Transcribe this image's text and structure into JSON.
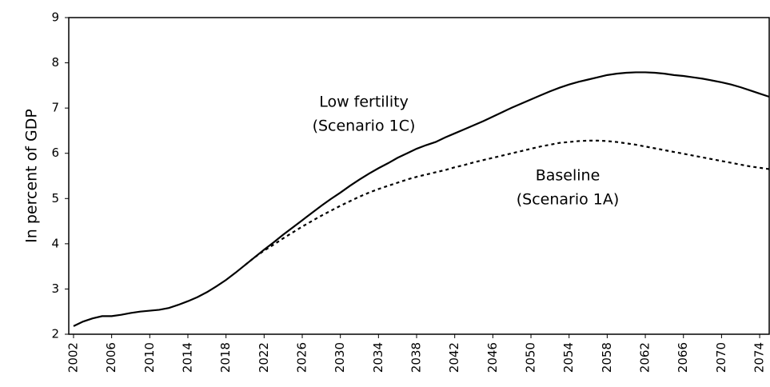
{
  "chart_data": {
    "type": "line",
    "y_label": "In percent of GDP",
    "annotations": [
      [
        "Low fertility",
        "(Scenario 1C)"
      ],
      [
        "Baseline",
        "(Scenario 1A)"
      ]
    ],
    "x": [
      2002,
      2003,
      2004,
      2005,
      2006,
      2007,
      2008,
      2009,
      2010,
      2011,
      2012,
      2013,
      2014,
      2015,
      2016,
      2017,
      2018,
      2019,
      2020,
      2021,
      2022,
      2023,
      2024,
      2025,
      2026,
      2027,
      2028,
      2029,
      2030,
      2031,
      2032,
      2033,
      2034,
      2035,
      2036,
      2037,
      2038,
      2039,
      2040,
      2041,
      2042,
      2043,
      2044,
      2045,
      2046,
      2047,
      2048,
      2049,
      2050,
      2051,
      2052,
      2053,
      2054,
      2055,
      2056,
      2057,
      2058,
      2059,
      2060,
      2061,
      2062,
      2063,
      2064,
      2065,
      2066,
      2067,
      2068,
      2069,
      2070,
      2071,
      2072,
      2073,
      2074,
      2075
    ],
    "series": [
      {
        "name": "Low fertility (Scenario 1C)",
        "color": "#000000",
        "dash": "solid",
        "values": [
          2.18,
          2.28,
          2.35,
          2.4,
          2.4,
          2.43,
          2.47,
          2.5,
          2.52,
          2.54,
          2.58,
          2.65,
          2.73,
          2.82,
          2.93,
          3.06,
          3.2,
          3.36,
          3.53,
          3.7,
          3.87,
          4.03,
          4.2,
          4.36,
          4.52,
          4.68,
          4.84,
          4.99,
          5.13,
          5.28,
          5.42,
          5.55,
          5.67,
          5.78,
          5.9,
          6.0,
          6.1,
          6.18,
          6.25,
          6.35,
          6.44,
          6.53,
          6.62,
          6.71,
          6.81,
          6.91,
          7.01,
          7.1,
          7.19,
          7.28,
          7.37,
          7.45,
          7.52,
          7.58,
          7.63,
          7.68,
          7.73,
          7.76,
          7.78,
          7.79,
          7.79,
          7.78,
          7.76,
          7.73,
          7.71,
          7.68,
          7.65,
          7.61,
          7.57,
          7.52,
          7.46,
          7.39,
          7.32,
          7.25
        ]
      },
      {
        "name": "Baseline (Scenario 1A)",
        "color": "#000000",
        "dash": "dashed",
        "values": [
          null,
          null,
          null,
          null,
          null,
          null,
          null,
          null,
          null,
          null,
          null,
          null,
          null,
          null,
          null,
          null,
          null,
          null,
          3.53,
          3.7,
          3.85,
          3.98,
          4.12,
          4.25,
          4.38,
          4.5,
          4.62,
          4.73,
          4.84,
          4.94,
          5.04,
          5.13,
          5.21,
          5.28,
          5.35,
          5.42,
          5.48,
          5.53,
          5.58,
          5.63,
          5.69,
          5.74,
          5.8,
          5.85,
          5.9,
          5.95,
          6.0,
          6.05,
          6.1,
          6.15,
          6.19,
          6.23,
          6.25,
          6.27,
          6.28,
          6.28,
          6.27,
          6.25,
          6.22,
          6.19,
          6.15,
          6.11,
          6.07,
          6.03,
          5.99,
          5.95,
          5.91,
          5.87,
          5.83,
          5.79,
          5.75,
          5.71,
          5.68,
          5.65
        ]
      }
    ],
    "xlim": [
      2001.5,
      2075
    ],
    "xticks": [
      2002,
      2006,
      2010,
      2014,
      2018,
      2022,
      2026,
      2030,
      2034,
      2038,
      2042,
      2046,
      2050,
      2054,
      2058,
      2062,
      2066,
      2070,
      2074
    ],
    "ylim": [
      2,
      9
    ],
    "yticks": [
      2,
      3,
      4,
      5,
      6,
      7,
      8,
      9
    ]
  }
}
